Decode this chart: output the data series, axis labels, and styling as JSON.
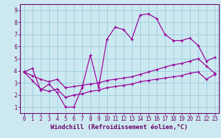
{
  "title": "",
  "xlabel": "Windchill (Refroidissement éolien,°C)",
  "bg_color": "#cce8f0",
  "grid_color": "#99ccdd",
  "line_color": "#990099",
  "spine_color": "#660066",
  "tick_color": "#660066",
  "xlim": [
    -0.5,
    23.5
  ],
  "ylim": [
    0.5,
    9.5
  ],
  "xticks": [
    0,
    1,
    2,
    3,
    4,
    5,
    6,
    7,
    8,
    9,
    10,
    11,
    12,
    13,
    14,
    15,
    16,
    17,
    18,
    19,
    20,
    21,
    22,
    23
  ],
  "yticks": [
    1,
    2,
    3,
    4,
    5,
    6,
    7,
    8,
    9
  ],
  "series1": [
    3.9,
    4.2,
    2.4,
    2.9,
    2.2,
    1.0,
    1.0,
    2.6,
    5.3,
    2.6,
    6.6,
    7.6,
    7.4,
    6.6,
    8.6,
    8.7,
    8.3,
    7.0,
    6.5,
    6.5,
    6.7,
    6.1,
    4.8,
    5.1
  ],
  "series2": [
    3.9,
    3.6,
    3.3,
    3.1,
    3.3,
    2.6,
    2.7,
    2.8,
    2.9,
    3.0,
    3.2,
    3.3,
    3.4,
    3.5,
    3.7,
    3.9,
    4.1,
    4.3,
    4.5,
    4.6,
    4.8,
    5.0,
    4.4,
    3.8
  ],
  "series3": [
    3.9,
    3.2,
    2.5,
    2.3,
    2.5,
    1.8,
    2.0,
    2.1,
    2.3,
    2.4,
    2.6,
    2.7,
    2.8,
    2.9,
    3.1,
    3.2,
    3.3,
    3.4,
    3.5,
    3.6,
    3.8,
    3.9,
    3.3,
    3.7
  ],
  "xlabel_fontsize": 6.5,
  "tick_fontsize": 5.5
}
